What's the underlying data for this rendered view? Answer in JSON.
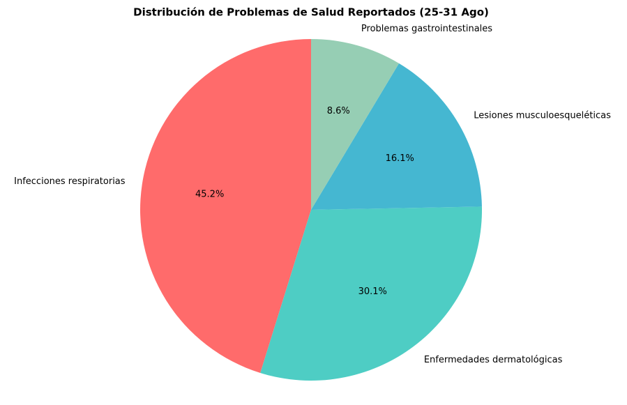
{
  "chart_data": {
    "type": "pie",
    "title": "Distribución de Problemas de Salud Reportados (25-31 Ago)",
    "categories": [
      "Infecciones respiratorias",
      "Enfermedades dermatológicas",
      "Lesiones musculoesqueléticas",
      "Problemas gastrointestinales"
    ],
    "values": [
      45.2,
      30.1,
      16.1,
      8.6
    ],
    "value_labels": [
      "45.2%",
      "30.1%",
      "16.1%",
      "8.6%"
    ],
    "colors": [
      "#ff6b6b",
      "#4ecdc4",
      "#45b7d1",
      "#96ceb4"
    ]
  }
}
